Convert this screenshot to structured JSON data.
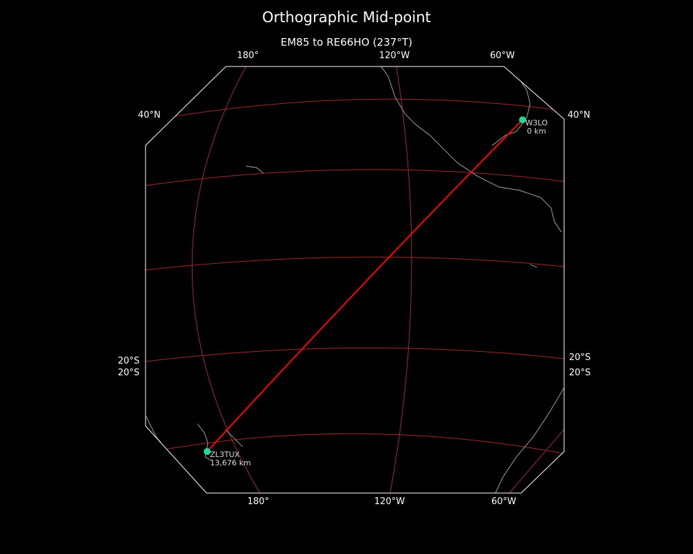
{
  "title": "Orthographic Mid-point",
  "subtitle": "EM85 to RE66HO (237°T)",
  "colors": {
    "background": "#000000",
    "graticule": "#a52a2a",
    "path": "#ff0000",
    "station": "#1fd8a0",
    "coast": "#888888",
    "border": "#ffffff"
  },
  "ticks": {
    "top": [
      "180°",
      "120°W",
      "60°W"
    ],
    "bottom": [
      "180°",
      "120°W",
      "60°W"
    ],
    "left": [
      "40°N",
      "20°S",
      "20°S"
    ],
    "right": [
      "40°N",
      "20°S",
      "20°S"
    ]
  },
  "stations": [
    {
      "call": "W3LO",
      "distance": "0 km"
    },
    {
      "call": "ZL3TUX",
      "distance": "13,676 km"
    }
  ]
}
